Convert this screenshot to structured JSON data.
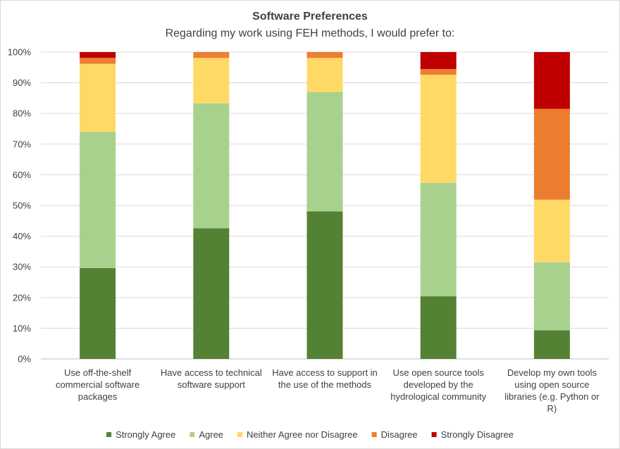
{
  "chart_data": {
    "type": "bar",
    "stacked": true,
    "percent": true,
    "title": "Software Preferences",
    "subtitle": "Regarding my work using FEH methods, I would prefer to:",
    "ylim": [
      0,
      100
    ],
    "yticks": [
      "0%",
      "10%",
      "20%",
      "30%",
      "40%",
      "50%",
      "60%",
      "70%",
      "80%",
      "90%",
      "100%"
    ],
    "grid": true,
    "legend_position": "bottom",
    "categories": [
      [
        "Use off-the-shelf",
        "commercial software",
        "packages"
      ],
      [
        "Have access to technical",
        "software support"
      ],
      [
        "Have access to support in",
        "the use of the methods"
      ],
      [
        "Use open source tools",
        "developed by the",
        "hydrological community"
      ],
      [
        "Develop my own tools",
        "using open source",
        "libraries (e.g. Python or",
        "R)"
      ]
    ],
    "series": [
      {
        "name": "Strongly Agree",
        "color": "#548235",
        "values": [
          29.6,
          42.6,
          48.1,
          20.4,
          9.3
        ]
      },
      {
        "name": "Agree",
        "color": "#a9d18e",
        "values": [
          44.4,
          40.7,
          38.9,
          37.0,
          22.2
        ]
      },
      {
        "name": "Neither Agree nor Disagree",
        "color": "#ffd966",
        "values": [
          22.2,
          14.8,
          11.1,
          35.2,
          20.4
        ]
      },
      {
        "name": "Disagree",
        "color": "#ed7d31",
        "values": [
          1.9,
          1.9,
          1.9,
          1.9,
          29.6
        ]
      },
      {
        "name": "Strongly Disagree",
        "color": "#c00000",
        "values": [
          1.9,
          0.0,
          0.0,
          5.5,
          18.5
        ]
      }
    ]
  }
}
